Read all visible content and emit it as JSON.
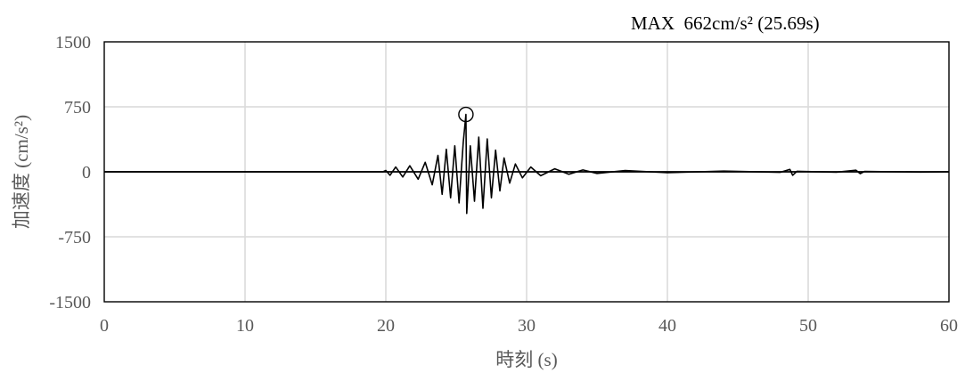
{
  "chart_data": {
    "type": "line",
    "title": "",
    "annotation": "MAX  662cm/s² (25.69s)",
    "xlabel": "時刻 (s)",
    "ylabel": "加速度 (cm/s²)",
    "xlim": [
      0,
      60
    ],
    "ylim": [
      -1500,
      1500
    ],
    "xticks": [
      0,
      10,
      20,
      30,
      40,
      50,
      60
    ],
    "yticks": [
      1500,
      750,
      0,
      -750,
      -1500
    ],
    "xtick_labels": [
      "0",
      "10",
      "20",
      "30",
      "40",
      "50",
      "60"
    ],
    "ytick_labels": [
      "1500",
      "750",
      "0",
      "-750",
      "-1500"
    ],
    "grid": true,
    "legend": "none",
    "line_color": "#000000",
    "grid_color": "#d9d9d9",
    "peak": {
      "x": 25.69,
      "y": 662
    },
    "series": [
      {
        "values": [
          [
            0,
            0
          ],
          [
            19.8,
            0
          ],
          [
            20.0,
            15
          ],
          [
            20.3,
            -40
          ],
          [
            20.7,
            55
          ],
          [
            21.2,
            -60
          ],
          [
            21.7,
            70
          ],
          [
            22.3,
            -85
          ],
          [
            22.8,
            110
          ],
          [
            23.3,
            -150
          ],
          [
            23.7,
            190
          ],
          [
            24.0,
            -260
          ],
          [
            24.3,
            260
          ],
          [
            24.6,
            -300
          ],
          [
            24.9,
            300
          ],
          [
            25.2,
            -360
          ],
          [
            25.5,
            340
          ],
          [
            25.69,
            662
          ],
          [
            25.75,
            -480
          ],
          [
            26.0,
            300
          ],
          [
            26.3,
            -340
          ],
          [
            26.6,
            400
          ],
          [
            26.9,
            -420
          ],
          [
            27.2,
            380
          ],
          [
            27.5,
            -300
          ],
          [
            27.8,
            250
          ],
          [
            28.1,
            -220
          ],
          [
            28.4,
            160
          ],
          [
            28.8,
            -130
          ],
          [
            29.2,
            90
          ],
          [
            29.7,
            -70
          ],
          [
            30.3,
            55
          ],
          [
            31.0,
            -45
          ],
          [
            32.0,
            35
          ],
          [
            33.0,
            -28
          ],
          [
            34.0,
            22
          ],
          [
            35.0,
            -18
          ],
          [
            37.0,
            14
          ],
          [
            40.0,
            -10
          ],
          [
            44.0,
            8
          ],
          [
            48.0,
            -6
          ],
          [
            48.7,
            28
          ],
          [
            48.9,
            -40
          ],
          [
            49.2,
            6
          ],
          [
            52.0,
            -4
          ],
          [
            53.4,
            18
          ],
          [
            53.7,
            -22
          ],
          [
            54.0,
            4
          ],
          [
            58.0,
            -3
          ],
          [
            60.0,
            0
          ]
        ]
      }
    ]
  }
}
